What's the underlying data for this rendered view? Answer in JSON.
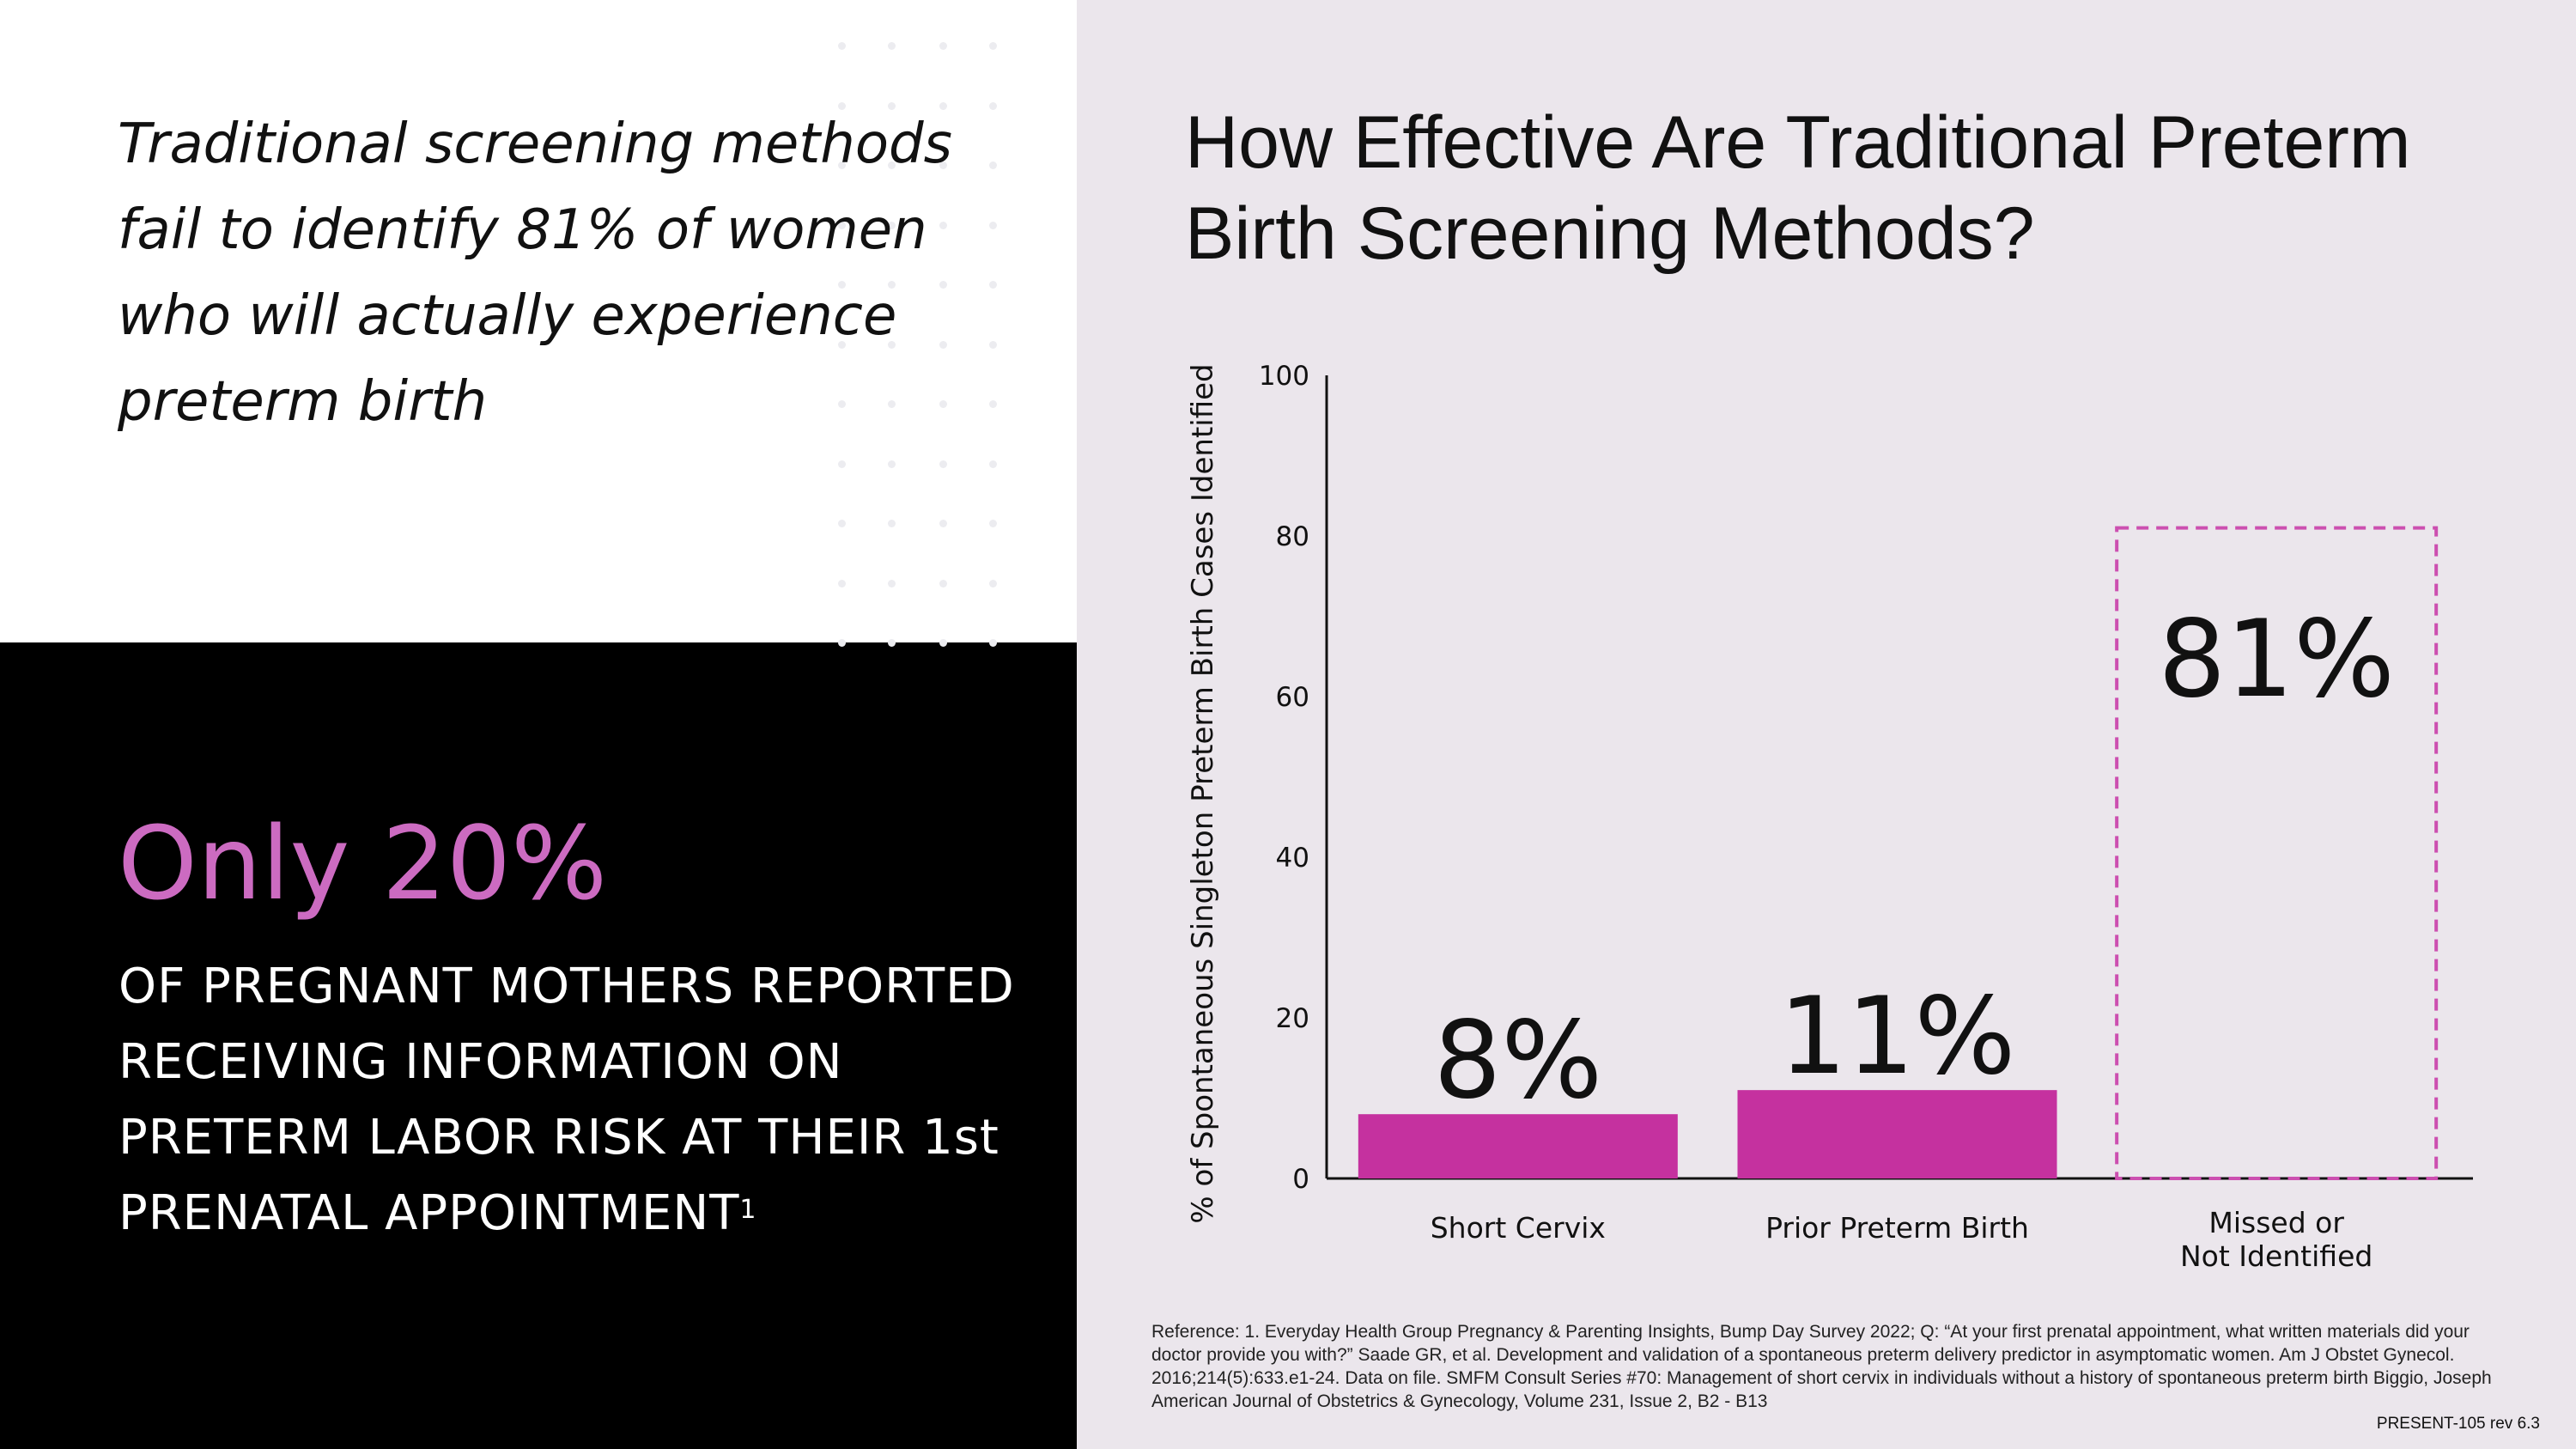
{
  "left_panel": {
    "quote": "Traditional screening methods fail to identify 81% of women who will actually experience preterm birth",
    "stat_headline": "Only 20%",
    "stat_body": "OF PREGNANT MOTHERS REPORTED RECEIVING INFORMATION ON PRETERM LABOR RISK AT THEIR 1st PRENATAL APPOINTMENT",
    "stat_footnote": "1"
  },
  "chart_data": {
    "type": "bar",
    "title": "How Effective Are Traditional Preterm Birth Screening Methods?",
    "ylabel": "% of Spontaneous Singleton Preterm Birth Cases Identified",
    "xlabel": "",
    "ylim": [
      0,
      100
    ],
    "yticks": [
      0,
      20,
      40,
      60,
      80,
      100
    ],
    "grid": false,
    "categories": [
      "Short Cervix",
      "Prior Preterm Birth",
      "Missed or Not Identified"
    ],
    "category_lines": [
      [
        "Short Cervix"
      ],
      [
        "Prior Preterm Birth"
      ],
      [
        "Missed or",
        "Not Identified"
      ]
    ],
    "values": [
      8,
      11,
      81
    ],
    "data_labels": [
      "8%",
      "11%",
      "81%"
    ],
    "bar_styles": [
      "filled",
      "filled",
      "dashed-outline"
    ],
    "bar_color": "#c5319f",
    "outline_color": "#cc4fb0"
  },
  "footer": {
    "reference": "Reference: 1. Everyday Health Group Pregnancy & Parenting Insights, Bump Day Survey 2022; Q: “At your first prenatal appointment, what written materials did your doctor provide you with?” Saade GR, et al. Development and validation of a spontaneous preterm delivery predictor in asymptomatic women. Am J Obstet Gynecol. 2016;214(5):633.e1-24. Data on file.  SMFM Consult Series #70: Management of short cervix in individuals without a history of spontaneous preterm birth Biggio, Joseph American Journal of Obstetrics & Gynecology, Volume 231, Issue 2, B2 - B13",
    "doc_code": "PRESENT-105 rev 6.3"
  },
  "colors": {
    "accent_pink": "#cc6bc1",
    "panel_bg": "#ebe6ec",
    "dark_bg": "#000000"
  }
}
